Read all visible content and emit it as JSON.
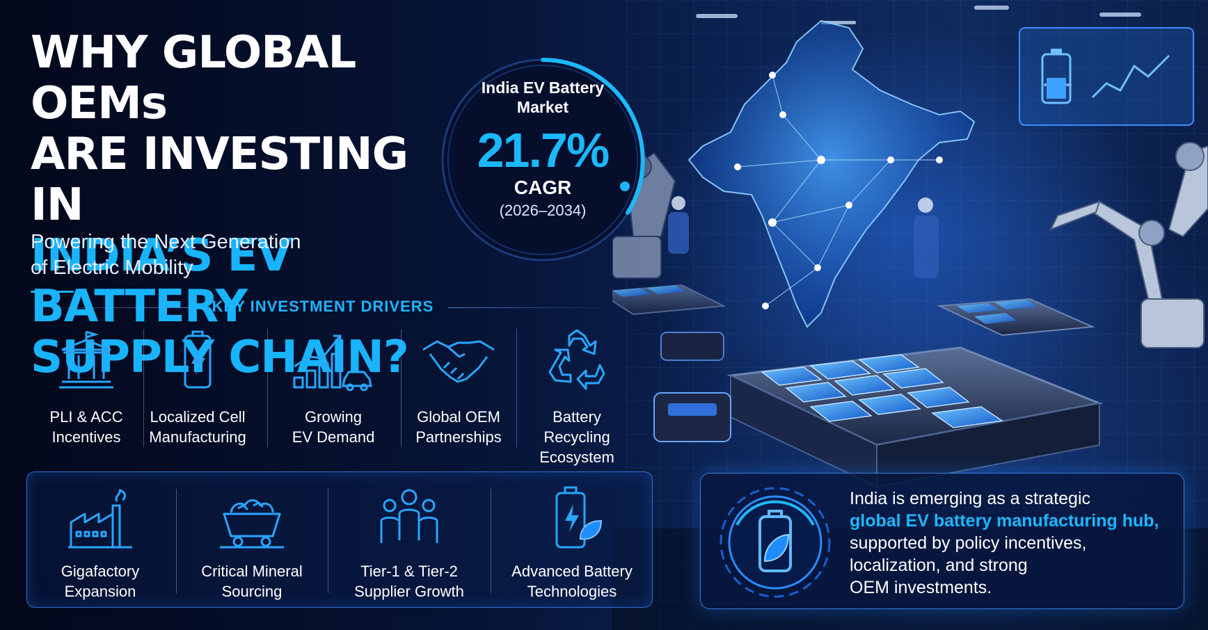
{
  "title": {
    "line1": "WHY GLOBAL OEMs",
    "line2": "ARE INVESTING IN",
    "line3": "INDIA’S EV BATTERY",
    "line4": "SUPPLY CHAIN?"
  },
  "subtitle": {
    "line1": "Powering the Next Generation",
    "line2": "of Electric Mobility"
  },
  "gauge": {
    "label_line1": "India EV Battery",
    "label_line2": "Market",
    "value": "21.7%",
    "unit": "CAGR",
    "period": "(2026–2034)"
  },
  "drivers": {
    "heading": "KEY INVESTMENT DRIVERS",
    "items": [
      {
        "icon": "government-building-icon",
        "line1": "PLI & ACC",
        "line2": "Incentives",
        "line3": ""
      },
      {
        "icon": "battery-bolt-icon",
        "line1": "Localized Cell",
        "line2": "Manufacturing",
        "line3": ""
      },
      {
        "icon": "growth-chart-car-icon",
        "line1": "Growing",
        "line2": "EV Demand",
        "line3": ""
      },
      {
        "icon": "handshake-icon",
        "line1": "Global OEM",
        "line2": "Partnerships",
        "line3": ""
      },
      {
        "icon": "recycle-icon",
        "line1": "Battery",
        "line2": "Recycling",
        "line3": "Ecosystem"
      }
    ]
  },
  "panel": {
    "items": [
      {
        "icon": "factory-icon",
        "line1": "Gigafactory",
        "line2": "Expansion"
      },
      {
        "icon": "mine-cart-icon",
        "line1": "Critical Mineral",
        "line2": "Sourcing"
      },
      {
        "icon": "people-group-icon",
        "line1": "Tier-1 & Tier-2",
        "line2": "Supplier Growth"
      },
      {
        "icon": "battery-leaf-icon",
        "line1": "Advanced Battery",
        "line2": "Technologies"
      }
    ]
  },
  "info": {
    "line1": "India is emerging as a strategic",
    "highlight": "global EV battery manufacturing hub,",
    "line3": "supported by policy incentives,",
    "line4": "localization, and strong",
    "line5": "OEM investments."
  },
  "colors": {
    "accent": "#19b4ff",
    "background": "#040b1f",
    "panel_border": "#3c8cff"
  }
}
